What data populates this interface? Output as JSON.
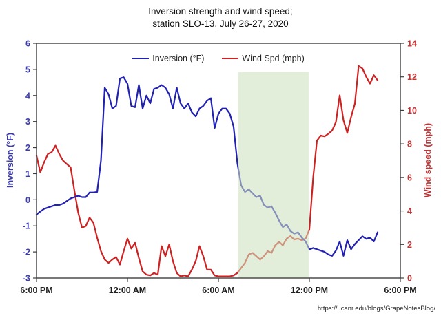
{
  "title": {
    "line1": "Inversion strength and wind speed;",
    "line2": "station SLO-13, July 26-27, 2020"
  },
  "source": "https://ucanr.edu/blogs/GrapeNotesBlog/",
  "chart_data": {
    "type": "line",
    "title": "Inversion strength and wind speed; station SLO-13, July 26-27, 2020",
    "x_axis": {
      "range_hours": [
        0,
        24
      ],
      "tick_hours": [
        0,
        6,
        12,
        18,
        24
      ],
      "tick_labels": [
        "6:00 PM",
        "12:00 AM",
        "6:00 AM",
        "12:00 PM",
        "6:00 PM"
      ]
    },
    "y_left": {
      "label": "Inversion (°F)",
      "min": -3,
      "max": 6,
      "ticks": [
        -3,
        -2,
        -1,
        0,
        1,
        2,
        3,
        4,
        5,
        6
      ],
      "color": "#3b3bb0"
    },
    "y_right": {
      "label": "Wind speed (mph)",
      "min": 0,
      "max": 14,
      "ticks": [
        0,
        2,
        4,
        6,
        8,
        10,
        12,
        14
      ],
      "color": "#c03434"
    },
    "highlight_band": {
      "start_hour": 13.3,
      "end_hour": 17.95,
      "top_mph": 12.3,
      "color": "#cde2bd",
      "opacity": 0.58
    },
    "grid": "off",
    "legend_position": "top-center",
    "step_hours": 0.25,
    "series": [
      {
        "name": "Inversion (°F)",
        "axis": "left",
        "color": "#2121b2",
        "values": [
          -0.57,
          -0.45,
          -0.35,
          -0.3,
          -0.25,
          -0.2,
          -0.2,
          -0.15,
          -0.05,
          0.05,
          0.1,
          0.15,
          0.1,
          0.1,
          0.28,
          0.28,
          0.3,
          1.5,
          4.3,
          4.05,
          3.5,
          3.6,
          4.65,
          4.7,
          4.45,
          3.6,
          3.55,
          4.4,
          3.5,
          4.0,
          3.7,
          4.25,
          4.3,
          4.4,
          4.3,
          4.05,
          3.5,
          4.3,
          3.7,
          3.5,
          3.7,
          3.35,
          3.2,
          3.5,
          3.6,
          3.8,
          3.9,
          2.75,
          3.3,
          3.5,
          3.5,
          3.3,
          2.8,
          1.4,
          0.55,
          0.3,
          0.4,
          0.25,
          0.1,
          0.15,
          -0.2,
          -0.3,
          -0.25,
          -0.5,
          -0.8,
          -1.05,
          -0.95,
          -1.2,
          -1.3,
          -1.25,
          -1.45,
          -1.6,
          -1.9,
          -1.85,
          -1.9,
          -1.95,
          -2.0,
          -2.1,
          -2.15,
          -1.95,
          -1.6,
          -2.15,
          -1.55,
          -1.9,
          -1.7,
          -1.55,
          -1.4,
          -1.5,
          -1.45,
          -1.6,
          -1.25
        ]
      },
      {
        "name": "Wind Spd (mph)",
        "axis": "right",
        "color": "#cc2222",
        "values": [
          7.3,
          6.3,
          6.9,
          7.4,
          7.5,
          7.9,
          7.4,
          7.0,
          6.8,
          6.6,
          5.2,
          3.9,
          3.0,
          3.1,
          3.6,
          3.3,
          2.4,
          1.6,
          1.1,
          0.9,
          1.1,
          1.25,
          0.8,
          1.6,
          2.35,
          1.75,
          2.1,
          1.2,
          0.4,
          0.2,
          0.15,
          0.3,
          0.2,
          1.9,
          1.3,
          2.0,
          1.0,
          0.3,
          0.1,
          0.15,
          0.1,
          0.5,
          1.0,
          1.9,
          1.3,
          0.5,
          0.5,
          0.15,
          0.1,
          0.1,
          0.1,
          0.1,
          0.15,
          0.3,
          0.6,
          0.9,
          1.4,
          1.5,
          1.3,
          1.1,
          1.3,
          1.6,
          1.5,
          1.95,
          2.15,
          1.95,
          2.35,
          2.5,
          2.3,
          2.35,
          2.25,
          2.35,
          2.9,
          6.0,
          8.2,
          8.5,
          8.45,
          8.6,
          8.8,
          9.3,
          10.9,
          9.4,
          8.65,
          9.6,
          10.4,
          12.65,
          12.5,
          12.0,
          11.6,
          12.1,
          11.8
        ]
      }
    ]
  }
}
